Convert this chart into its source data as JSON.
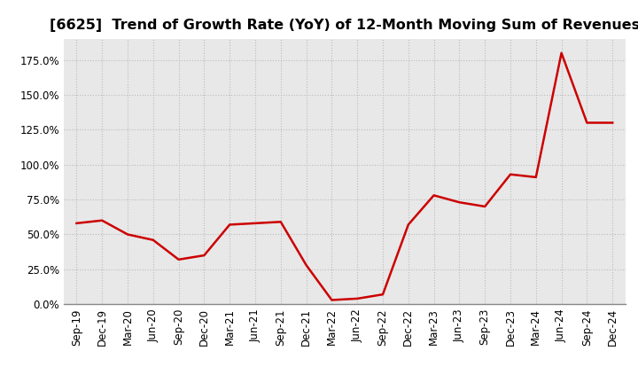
{
  "title": "[6625]  Trend of Growth Rate (YoY) of 12-Month Moving Sum of Revenues",
  "title_fontsize": 11.5,
  "line_color": "#cc0000",
  "line_width": 1.8,
  "bg_color": "#ffffff",
  "plot_bg_color": "#e8e8e8",
  "grid_color": "#bbbbbb",
  "x_labels": [
    "Sep-19",
    "Dec-19",
    "Mar-20",
    "Jun-20",
    "Sep-20",
    "Dec-20",
    "Mar-21",
    "Jun-21",
    "Sep-21",
    "Dec-21",
    "Mar-22",
    "Jun-22",
    "Sep-22",
    "Dec-22",
    "Mar-23",
    "Jun-23",
    "Sep-23",
    "Dec-23",
    "Mar-24",
    "Jun-24",
    "Sep-24",
    "Dec-24"
  ],
  "y_values": [
    58,
    60,
    50,
    46,
    32,
    35,
    57,
    58,
    59,
    28,
    3,
    4,
    7,
    57,
    78,
    73,
    70,
    93,
    91,
    180,
    130,
    130
  ],
  "ylim": [
    0,
    190
  ],
  "yticks": [
    0,
    25,
    50,
    75,
    100,
    125,
    150,
    175
  ],
  "tick_fontsize": 8.5
}
